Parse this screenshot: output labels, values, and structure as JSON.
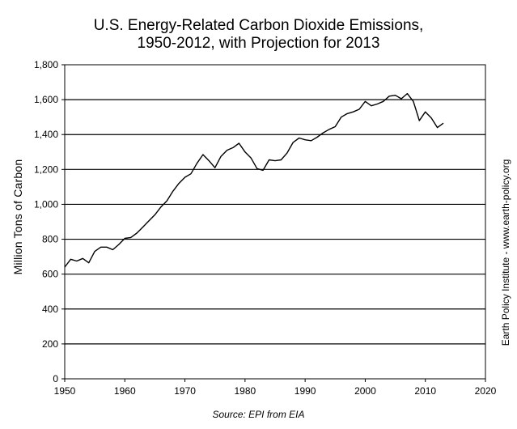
{
  "chart_data": {
    "type": "line",
    "title": "U.S. Energy-Related Carbon Dioxide Emissions, 1950-2012, with Projection for 2013",
    "title_lines": [
      "U.S. Energy-Related Carbon Dioxide Emissions,",
      "1950-2012, with Projection for 2013"
    ],
    "xlabel": "",
    "ylabel": "Million  Tons of Carbon",
    "source": "Source: EPI from EIA",
    "credit": "Earth Policy Institute - www.earth-policy.org",
    "xlim": [
      1950,
      2020
    ],
    "ylim": [
      0,
      1800
    ],
    "x_ticks": [
      1950,
      1960,
      1970,
      1980,
      1990,
      2000,
      2010,
      2020
    ],
    "y_ticks": [
      0,
      200,
      400,
      600,
      800,
      1000,
      1200,
      1400,
      1600,
      1800
    ],
    "y_tick_labels": [
      "0",
      "200",
      "400",
      "600",
      "800",
      "1,000",
      "1,200",
      "1,400",
      "1,600",
      "1,800"
    ],
    "grid": "horizontal",
    "legend": "none",
    "line_color": "#000000",
    "series": [
      {
        "x": [
          1950,
          1951,
          1952,
          1953,
          1954,
          1955,
          1956,
          1957,
          1958,
          1959,
          1960,
          1961,
          1962,
          1963,
          1964,
          1965,
          1966,
          1967,
          1968,
          1969,
          1970,
          1971,
          1972,
          1973,
          1974,
          1975,
          1976,
          1977,
          1978,
          1979,
          1980,
          1981,
          1982,
          1983,
          1984,
          1985,
          1986,
          1987,
          1988,
          1989,
          1990,
          1991,
          1992,
          1993,
          1994,
          1995,
          1996,
          1997,
          1998,
          1999,
          2000,
          2001,
          2002,
          2003,
          2004,
          2005,
          2006,
          2007,
          2008,
          2009,
          2010,
          2011,
          2012,
          2013
        ],
        "y": [
          640,
          685,
          675,
          690,
          665,
          730,
          755,
          755,
          740,
          770,
          805,
          810,
          835,
          870,
          905,
          940,
          985,
          1020,
          1075,
          1120,
          1155,
          1175,
          1235,
          1285,
          1250,
          1210,
          1275,
          1310,
          1325,
          1350,
          1300,
          1265,
          1205,
          1195,
          1255,
          1250,
          1255,
          1295,
          1355,
          1380,
          1370,
          1365,
          1385,
          1410,
          1430,
          1445,
          1500,
          1520,
          1530,
          1545,
          1590,
          1565,
          1575,
          1590,
          1620,
          1625,
          1605,
          1635,
          1590,
          1480,
          1530,
          1495,
          1440,
          1465
        ]
      }
    ]
  }
}
